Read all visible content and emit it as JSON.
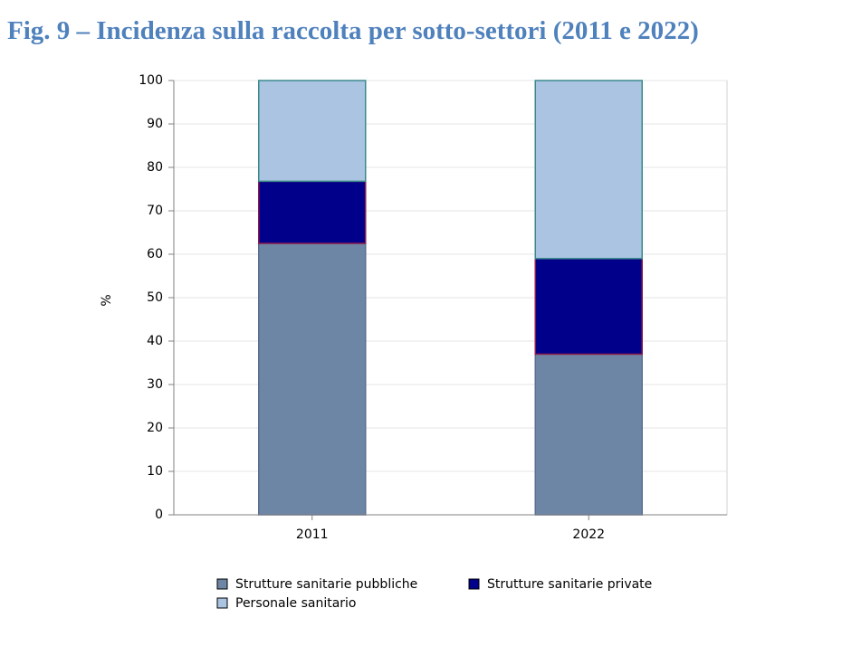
{
  "figure_title": "Fig. 9 – Incidenza sulla raccolta per sotto-settori (2011 e 2022)",
  "chart_data": {
    "type": "bar",
    "stacked": true,
    "title": "Fig. 9 – Incidenza sulla raccolta per sotto-settori (2011 e 2022)",
    "xlabel": "",
    "ylabel": "%",
    "categories": [
      "2011",
      "2022"
    ],
    "ylim": [
      0,
      100
    ],
    "yticks": [
      "0",
      "10",
      "20",
      "30",
      "40",
      "50",
      "60",
      "70",
      "80",
      "90",
      "100"
    ],
    "grid": true,
    "legend_position": "bottom",
    "series": [
      {
        "name": "Strutture sanitarie pubbliche",
        "values": [
          62.5,
          37.0
        ],
        "color": "#6e86a6",
        "stroke": "#5a6f8f"
      },
      {
        "name": "Strutture sanitarie private",
        "values": [
          14.3,
          22.0
        ],
        "color": "#00008b",
        "stroke": "#8b1a4a"
      },
      {
        "name": "Personale sanitario",
        "values": [
          23.2,
          41.0
        ],
        "color": "#aac4e2",
        "stroke": "#3a8a8a"
      }
    ]
  }
}
